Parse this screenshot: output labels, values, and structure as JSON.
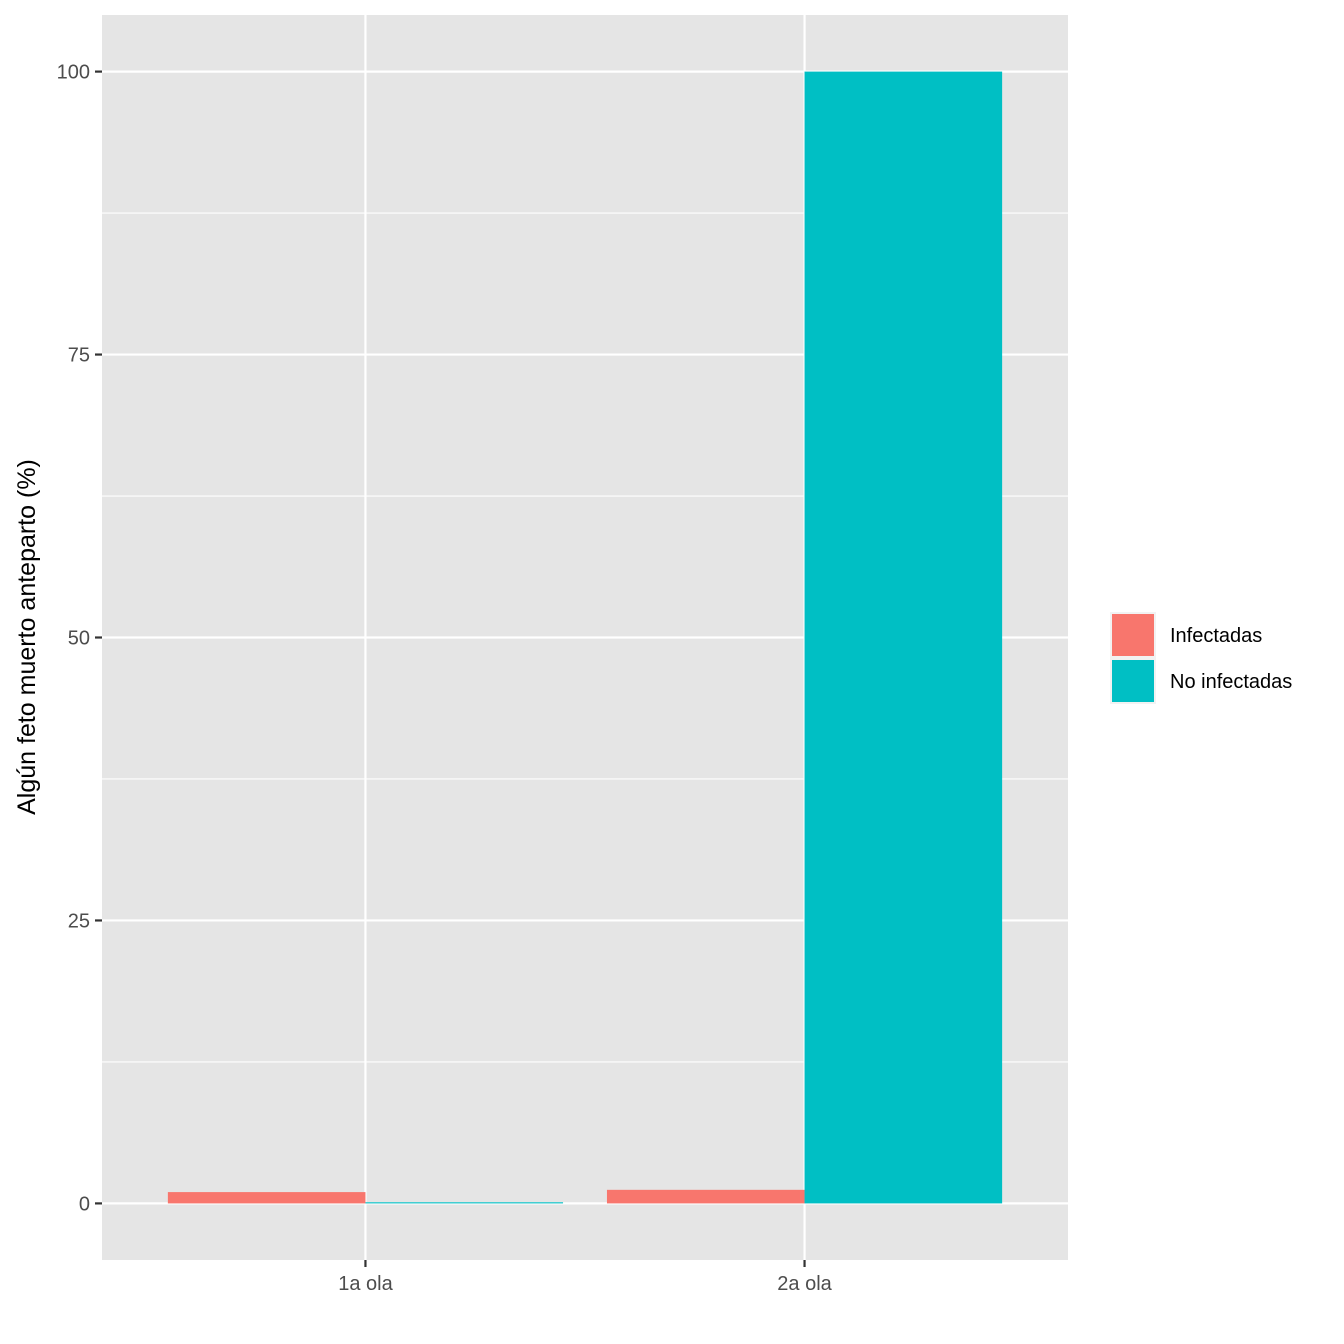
{
  "chart_data": {
    "type": "bar",
    "categories": [
      "1a ola",
      "2a ola"
    ],
    "series": [
      {
        "name": "Infectadas",
        "values": [
          1.0,
          1.2
        ],
        "color": "#F8766D"
      },
      {
        "name": "No infectadas",
        "values": [
          0.1,
          100
        ],
        "color": "#00BFC4"
      }
    ],
    "title": "",
    "xlabel": "",
    "ylabel": "Algún feto muerto anteparto (%)",
    "ylim": [
      -5,
      105
    ],
    "y_ticks": [
      0,
      25,
      50,
      75,
      100
    ],
    "y_tick_labels": [
      "0",
      "25",
      "50",
      "75",
      "100"
    ],
    "grid": true,
    "legend_position": "right",
    "panel_background": "#EBEBEB",
    "grid_color": "#FFFFFF"
  }
}
